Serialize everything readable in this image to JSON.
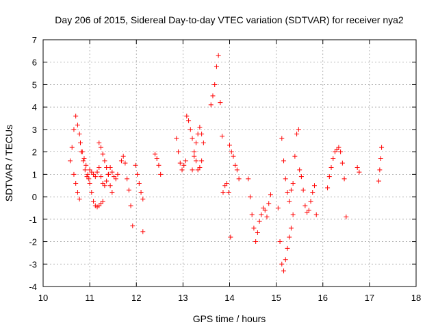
{
  "chart_data": {
    "type": "scatter",
    "title": "Day 206 of 2015, Sidereal Day-to-day VTEC variation (SDTVAR) for receiver nya2",
    "xlabel": "GPS time / hours",
    "ylabel": "SDTVAR / TECUs",
    "xlim": [
      10,
      18
    ],
    "ylim": [
      -4,
      7
    ],
    "xticks": [
      "10",
      "11",
      "12",
      "13",
      "14",
      "15",
      "16",
      "17",
      "18"
    ],
    "yticks": [
      "-4",
      "-3",
      "-2",
      "-1",
      "0",
      "1",
      "2",
      "3",
      "4",
      "5",
      "6",
      "7"
    ],
    "grid": true,
    "marker": "plus",
    "color": "#ff0000",
    "segments": [
      {
        "x": [
          10.58,
          10.62,
          10.66,
          10.7,
          10.74,
          10.78,
          10.82,
          10.86,
          10.9,
          10.94,
          10.98
        ],
        "y": [
          1.6,
          2.2,
          3.0,
          3.6,
          3.2,
          2.8,
          2.0,
          1.6,
          1.2,
          0.9,
          0.8
        ]
      },
      {
        "x": [
          10.66,
          10.7,
          10.74,
          10.78
        ],
        "y": [
          1.0,
          0.6,
          0.2,
          -0.1
        ]
      },
      {
        "x": [
          10.8,
          10.84,
          10.88,
          10.92,
          10.96,
          11.0,
          11.04,
          11.08,
          11.12,
          11.16,
          11.2,
          11.24,
          11.28
        ],
        "y": [
          2.4,
          2.0,
          1.7,
          1.4,
          1.0,
          0.6,
          0.2,
          -0.2,
          -0.4,
          -0.45,
          -0.4,
          -0.3,
          -0.2
        ]
      },
      {
        "x": [
          11.0,
          11.04,
          11.08,
          11.12,
          11.16,
          11.2,
          11.24,
          11.28,
          11.32,
          11.36,
          11.4,
          11.44,
          11.48,
          11.52,
          11.56,
          11.6
        ],
        "y": [
          1.2,
          1.1,
          1.0,
          0.9,
          1.1,
          1.3,
          0.9,
          0.6,
          0.5,
          0.7,
          1.0,
          1.3,
          1.1,
          0.9,
          0.8,
          1.0
        ]
      },
      {
        "x": [
          11.2,
          11.24,
          11.28,
          11.32,
          11.36,
          11.4,
          11.44,
          11.48
        ],
        "y": [
          2.4,
          2.2,
          1.9,
          1.6,
          1.3,
          1.0,
          0.5,
          0.2
        ]
      },
      {
        "x": [
          11.68,
          11.72,
          11.76,
          11.8,
          11.84,
          11.88,
          11.92
        ],
        "y": [
          1.6,
          1.8,
          1.5,
          0.8,
          0.3,
          -0.4,
          -1.3
        ]
      },
      {
        "x": [
          11.98,
          12.02,
          12.06,
          12.1,
          12.14
        ],
        "y": [
          1.4,
          1.0,
          0.6,
          0.2,
          -0.1
        ]
      },
      {
        "x": [
          12.14
        ],
        "y": [
          -1.55
        ]
      },
      {
        "x": [
          12.4,
          12.44,
          12.48,
          12.52
        ],
        "y": [
          1.9,
          1.7,
          1.4,
          1.0
        ]
      },
      {
        "x": [
          12.86,
          12.9,
          12.94,
          12.98,
          13.02,
          13.06
        ],
        "y": [
          2.6,
          2.0,
          1.5,
          1.2,
          1.4,
          1.6
        ]
      },
      {
        "x": [
          13.08,
          13.12,
          13.16,
          13.2,
          13.24,
          13.28,
          13.32,
          13.36,
          13.4
        ],
        "y": [
          3.6,
          3.4,
          3.0,
          2.6,
          2.0,
          1.6,
          1.2,
          1.3,
          1.6
        ]
      },
      {
        "x": [
          13.2,
          13.24,
          13.28,
          13.32,
          13.36,
          13.4,
          13.44
        ],
        "y": [
          1.2,
          1.8,
          2.4,
          2.8,
          3.1,
          2.8,
          2.4
        ]
      },
      {
        "x": [
          13.6,
          13.64,
          13.68,
          13.72,
          13.76,
          13.8,
          13.84
        ],
        "y": [
          4.1,
          4.5,
          5.0,
          5.8,
          6.3,
          4.2,
          2.7
        ]
      },
      {
        "x": [
          13.86,
          13.9,
          13.94,
          13.98,
          14.02
        ],
        "y": [
          0.2,
          0.5,
          0.6,
          0.2,
          -1.8
        ]
      },
      {
        "x": [
          14.0,
          14.04,
          14.08,
          14.12,
          14.16,
          14.2
        ],
        "y": [
          2.3,
          2.0,
          1.8,
          1.4,
          1.2,
          0.8
        ]
      },
      {
        "x": [
          14.4,
          14.44,
          14.48,
          14.52,
          14.56,
          14.6,
          14.64,
          14.68,
          14.72,
          14.76,
          14.8,
          14.84,
          14.88
        ],
        "y": [
          0.8,
          0.0,
          -0.8,
          -1.4,
          -2.0,
          -1.6,
          -1.1,
          -0.8,
          -0.5,
          -0.6,
          -0.9,
          -0.3,
          0.1
        ]
      },
      {
        "x": [
          15.04,
          15.08,
          15.12,
          15.16,
          15.2,
          15.24,
          15.28,
          15.32,
          15.36
        ],
        "y": [
          -0.5,
          -2.0,
          -3.0,
          -3.3,
          -2.8,
          -2.3,
          -1.8,
          -1.4,
          -0.8
        ]
      },
      {
        "x": [
          15.12,
          15.16,
          15.2,
          15.24,
          15.28,
          15.32,
          15.36,
          15.4,
          15.44,
          15.48
        ],
        "y": [
          2.6,
          1.6,
          0.8,
          0.2,
          -0.2,
          0.3,
          0.6,
          1.8,
          2.8,
          3.0
        ]
      },
      {
        "x": [
          15.5,
          15.54,
          15.58,
          15.62,
          15.66,
          15.7,
          15.74,
          15.78,
          15.82,
          15.86
        ],
        "y": [
          1.2,
          0.9,
          0.3,
          -0.4,
          -0.7,
          -0.6,
          -0.2,
          0.2,
          0.5,
          -0.8
        ]
      },
      {
        "x": [
          16.1,
          16.14,
          16.18,
          16.22,
          16.26,
          16.3,
          16.34,
          16.38,
          16.42,
          16.46,
          16.5
        ],
        "y": [
          0.4,
          0.9,
          1.3,
          1.7,
          2.0,
          2.1,
          2.2,
          2.0,
          1.5,
          0.8,
          -0.9
        ]
      },
      {
        "x": [
          16.74,
          16.78
        ],
        "y": [
          1.3,
          1.1
        ]
      },
      {
        "x": [
          17.2,
          17.22,
          17.24,
          17.26
        ],
        "y": [
          0.7,
          1.2,
          1.7,
          2.2
        ]
      }
    ]
  }
}
